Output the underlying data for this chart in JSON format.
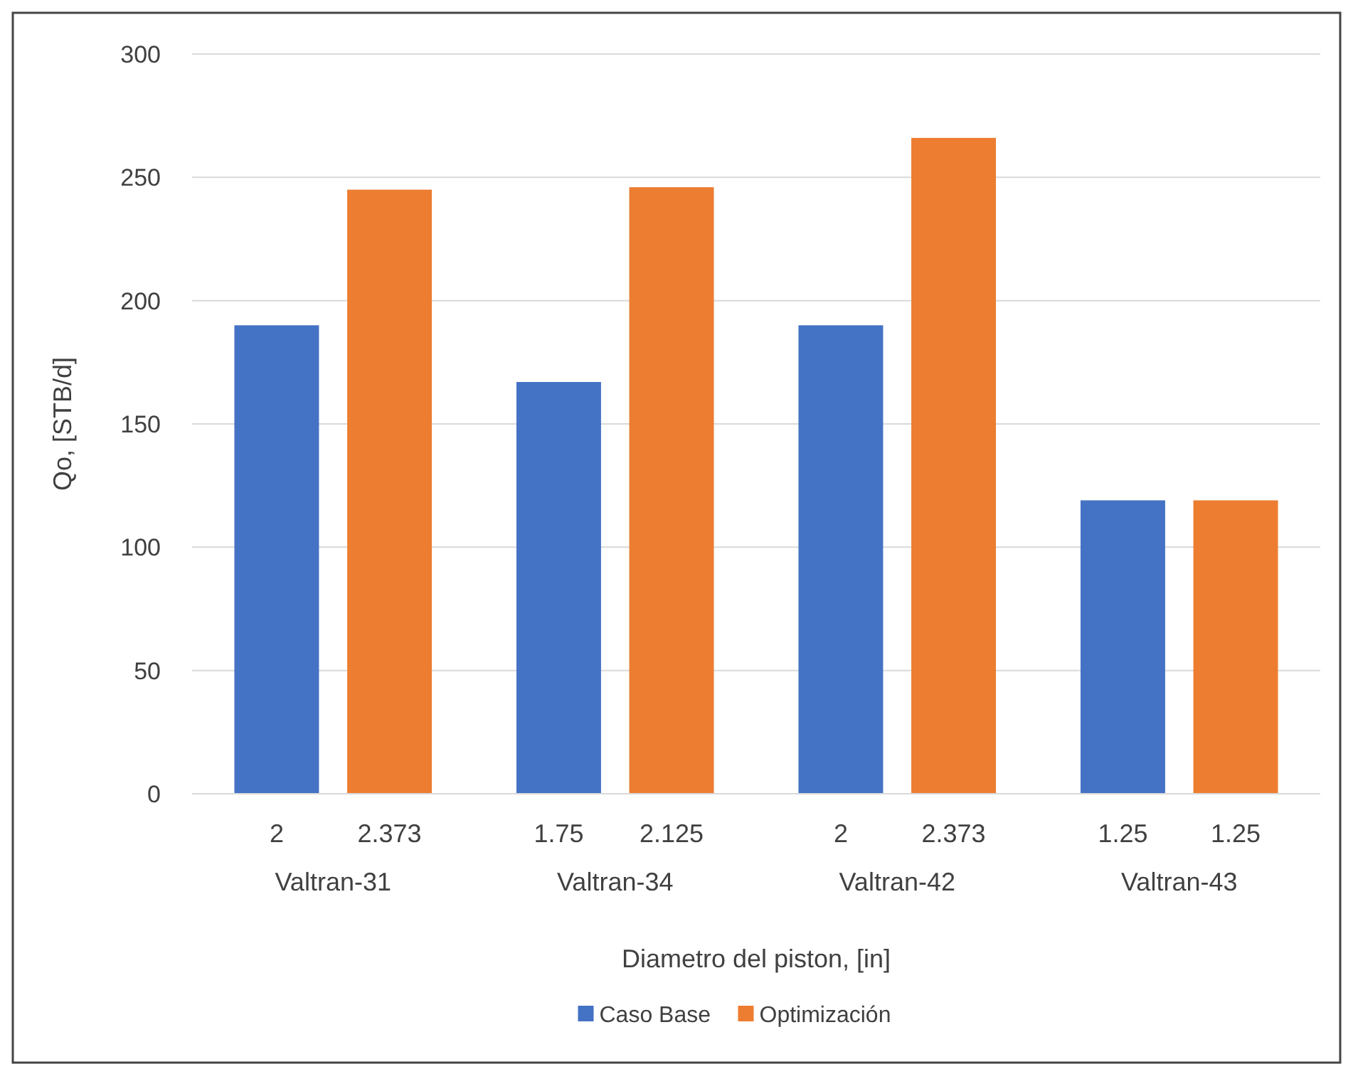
{
  "chart_data": {
    "type": "bar",
    "xlabel": "Diametro del piston, [in]",
    "ylabel": "Qo, [STB/d]",
    "categories": [
      "Valtran-31",
      "Valtran-34",
      "Valtran-42",
      "Valtran-43"
    ],
    "series": [
      {
        "name": "Caso Base",
        "color": "#4472c4",
        "values": [
          190,
          167,
          190,
          119
        ]
      },
      {
        "name": "Optimización",
        "color": "#ed7d31",
        "values": [
          245,
          246,
          266,
          119
        ]
      }
    ],
    "annotations": [
      "2",
      "2.373",
      "1.75",
      "2.125",
      "2",
      "2.373",
      "1.25",
      "1.25"
    ],
    "ylim": [
      0,
      300
    ],
    "yticks": [
      0,
      50,
      100,
      150,
      200,
      250,
      300
    ],
    "grid": "y",
    "legend": "bottom"
  }
}
